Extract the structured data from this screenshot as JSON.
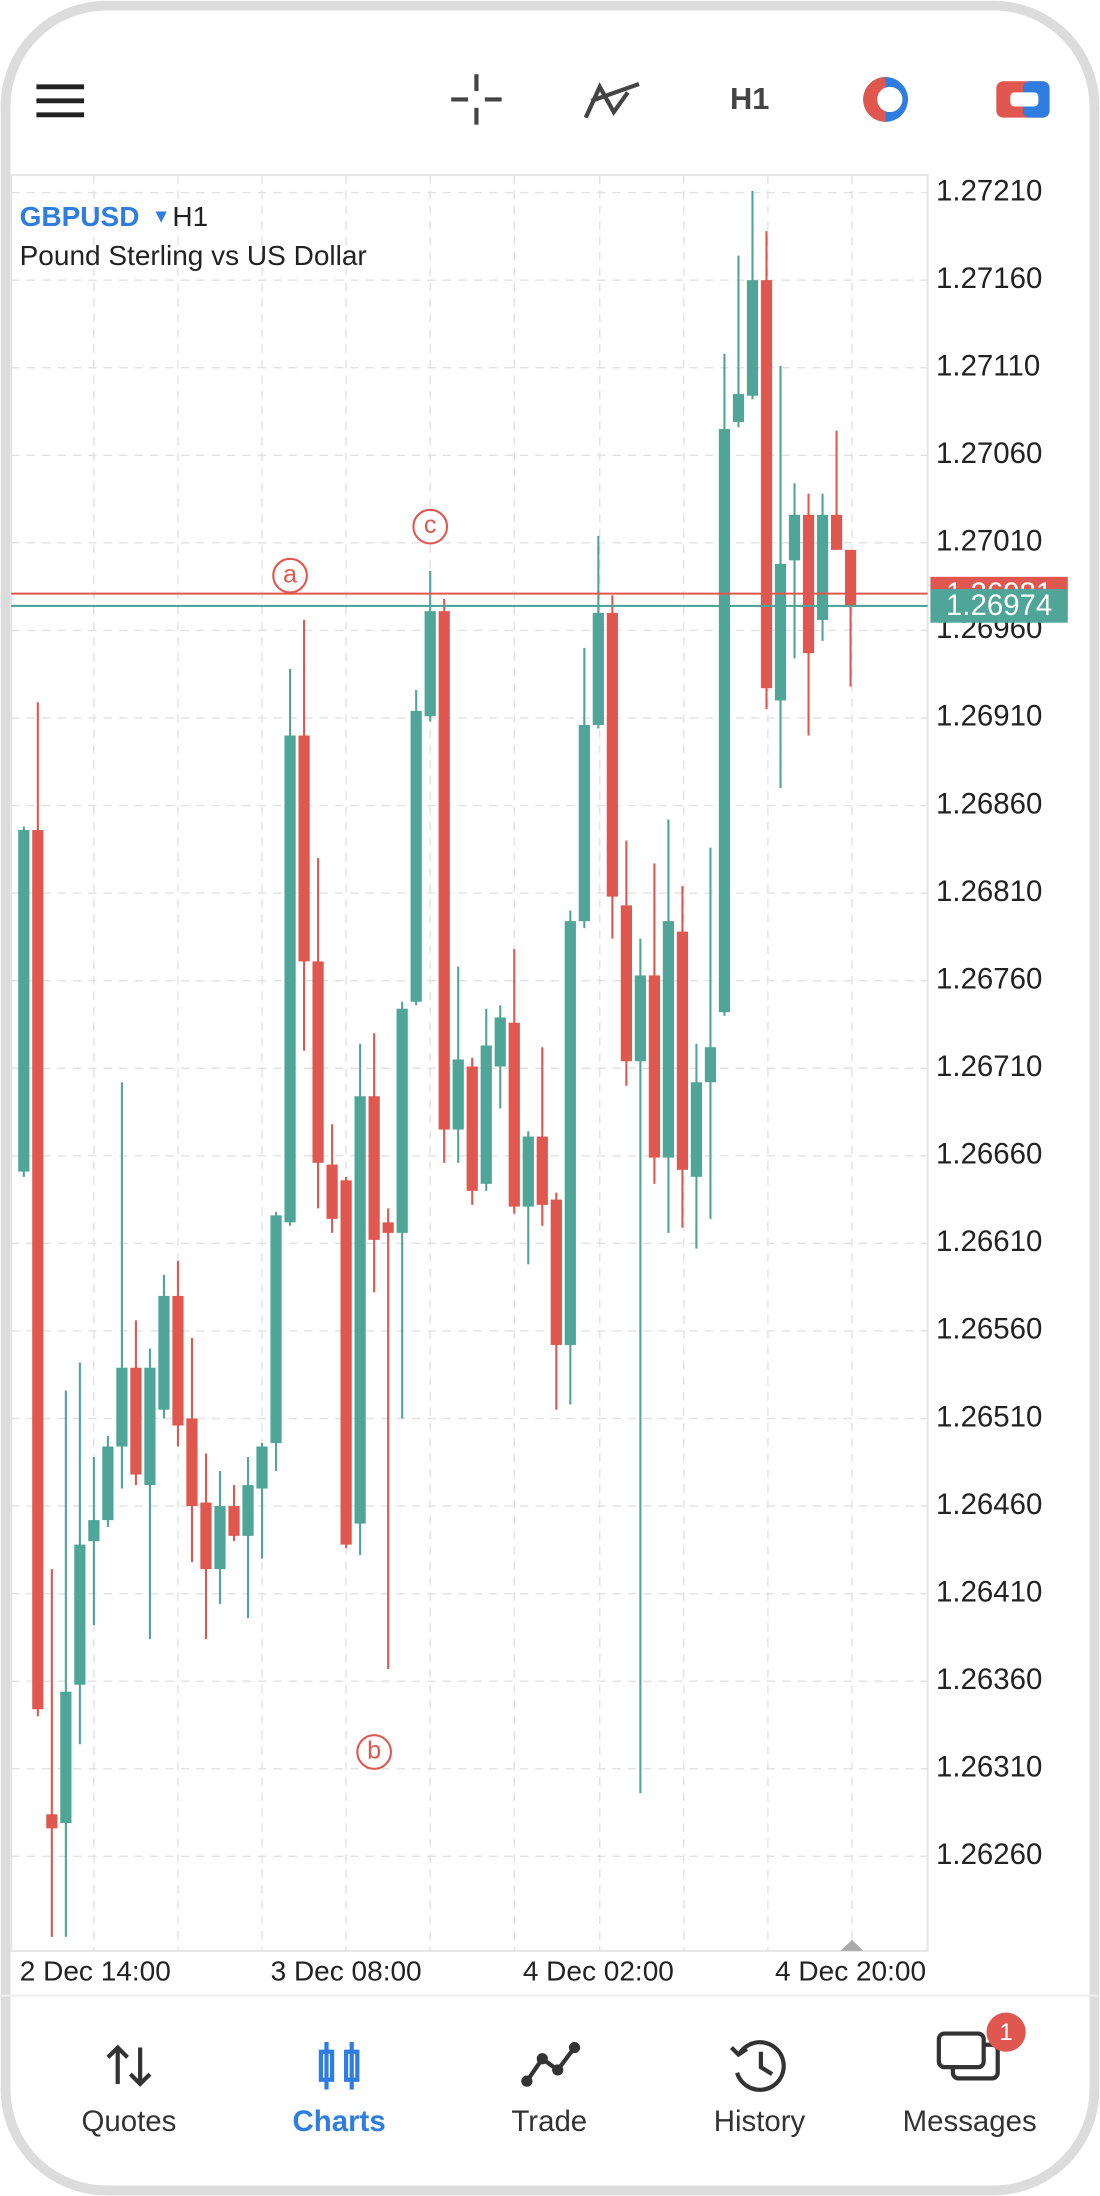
{
  "header": {
    "timeframe": "H1"
  },
  "chart_data": {
    "type": "candlestick",
    "symbol": "GBPUSD",
    "timeframe": "H1",
    "description": "Pound Sterling vs US Dollar",
    "categories": [
      null,
      null,
      null,
      null,
      null,
      "2 Dec 14:00",
      null,
      null,
      null,
      null,
      null,
      null,
      null,
      null,
      null,
      null,
      null,
      null,
      null,
      null,
      null,
      null,
      null,
      "3 Dec 08:00",
      null,
      null,
      null,
      null,
      null,
      null,
      null,
      null,
      null,
      null,
      null,
      null,
      null,
      null,
      null,
      null,
      null,
      "4 Dec 02:00",
      null,
      null,
      null,
      null,
      null,
      null,
      null,
      null,
      null,
      null,
      null,
      null,
      null,
      null,
      null,
      null,
      null,
      "4 Dec 20:00"
    ],
    "open": [
      1.26651,
      1.26846,
      1.26284,
      1.26279,
      1.26358,
      1.2644,
      1.26452,
      1.26494,
      1.26539,
      1.26472,
      1.26515,
      1.2658,
      1.2651,
      1.26462,
      1.26424,
      1.2646,
      1.26443,
      1.2647,
      1.26496,
      1.26622,
      1.269,
      1.26771,
      1.26655,
      1.26646,
      1.2645,
      1.26694,
      1.26622,
      1.26616,
      1.26748,
      1.26911,
      1.26971,
      1.26675,
      1.26711,
      1.26644,
      1.26711,
      1.26736,
      1.26631,
      1.26671,
      1.26635,
      1.26552,
      1.26794,
      1.26906,
      1.2697,
      1.26803,
      1.26714,
      1.26763,
      1.26659,
      1.26788,
      1.26648,
      1.26702,
      1.26742,
      1.27079,
      1.27094,
      1.2716,
      1.2692,
      1.27,
      1.27026,
      1.26966,
      1.27026,
      1.27006
    ],
    "high": [
      1.26848,
      1.26919,
      1.26424,
      1.26526,
      1.26542,
      1.26488,
      1.265,
      1.26702,
      1.26566,
      1.2655,
      1.26592,
      1.266,
      1.26556,
      1.2649,
      1.2648,
      1.26472,
      1.26488,
      1.26496,
      1.26628,
      1.26938,
      1.26966,
      1.2683,
      1.26678,
      1.26648,
      1.26724,
      1.2673,
      1.2663,
      1.26748,
      1.26926,
      1.26994,
      1.26978,
      1.26768,
      1.26716,
      1.26744,
      1.26746,
      1.26778,
      1.26674,
      1.26722,
      1.26639,
      1.268,
      1.2695,
      1.27014,
      1.2698,
      1.2684,
      1.26784,
      1.26827,
      1.26852,
      1.26814,
      1.26724,
      1.26836,
      1.27118,
      1.27174,
      1.27211,
      1.27188,
      1.27111,
      1.27044,
      1.27038,
      1.27038,
      1.27074,
      1.27006
    ],
    "low": [
      1.26648,
      1.2634,
      1.26214,
      1.26214,
      1.26324,
      1.26392,
      1.26448,
      1.2647,
      1.26472,
      1.26384,
      1.2651,
      1.26494,
      1.26428,
      1.26384,
      1.26404,
      1.2644,
      1.26396,
      1.2643,
      1.2648,
      1.2662,
      1.2672,
      1.2663,
      1.26616,
      1.26436,
      1.26432,
      1.26582,
      1.26367,
      1.2651,
      1.26746,
      1.26908,
      1.26656,
      1.26656,
      1.26632,
      1.2664,
      1.26687,
      1.26627,
      1.26598,
      1.2662,
      1.26515,
      1.26518,
      1.2679,
      1.26904,
      1.26784,
      1.267,
      1.26296,
      1.26644,
      1.26616,
      1.26619,
      1.26607,
      1.26624,
      1.2674,
      1.27076,
      1.27092,
      1.26915,
      1.2687,
      1.26944,
      1.269,
      1.26954,
      1.27006,
      1.26928
    ],
    "close": [
      1.26846,
      1.26344,
      1.26276,
      1.26354,
      1.26438,
      1.26452,
      1.26494,
      1.26539,
      1.26478,
      1.26539,
      1.2658,
      1.26506,
      1.2646,
      1.26424,
      1.2646,
      1.26443,
      1.26472,
      1.26494,
      1.26626,
      1.269,
      1.26771,
      1.26656,
      1.26624,
      1.26438,
      1.26694,
      1.26612,
      1.26616,
      1.26744,
      1.26914,
      1.26971,
      1.26675,
      1.26715,
      1.2664,
      1.26723,
      1.26739,
      1.26631,
      1.26671,
      1.26632,
      1.26552,
      1.26794,
      1.26906,
      1.2697,
      1.26808,
      1.26714,
      1.26763,
      1.26659,
      1.26794,
      1.26652,
      1.26702,
      1.26722,
      1.27075,
      1.27095,
      1.2716,
      1.26927,
      1.26998,
      1.27026,
      1.26947,
      1.27026,
      1.27006,
      1.26974
    ],
    "up_color": "#4fa597",
    "down_color": "#e0574f",
    "ylim": [
      1.26206,
      1.2722
    ],
    "yticks": [
      {
        "value": 1.2721,
        "label": "1.27210"
      },
      {
        "value": 1.2716,
        "label": "1.27160"
      },
      {
        "value": 1.2711,
        "label": "1.27110"
      },
      {
        "value": 1.2706,
        "label": "1.27060"
      },
      {
        "value": 1.2701,
        "label": "1.27010"
      },
      {
        "value": 1.2696,
        "label": "1.26960"
      },
      {
        "value": 1.2691,
        "label": "1.26910"
      },
      {
        "value": 1.2686,
        "label": "1.26860"
      },
      {
        "value": 1.2681,
        "label": "1.26810"
      },
      {
        "value": 1.2676,
        "label": "1.26760"
      },
      {
        "value": 1.2671,
        "label": "1.26710"
      },
      {
        "value": 1.2666,
        "label": "1.26660"
      },
      {
        "value": 1.2661,
        "label": "1.26610"
      },
      {
        "value": 1.2656,
        "label": "1.26560"
      },
      {
        "value": 1.2651,
        "label": "1.26510"
      },
      {
        "value": 1.2646,
        "label": "1.26460"
      },
      {
        "value": 1.2641,
        "label": "1.26410"
      },
      {
        "value": 1.2636,
        "label": "1.26360"
      },
      {
        "value": 1.2631,
        "label": "1.26310"
      },
      {
        "value": 1.2626,
        "label": "1.26260"
      }
    ],
    "grid": true,
    "ask": 1.26981,
    "bid": 1.26974,
    "annotations": [
      "a",
      "b",
      "c"
    ]
  },
  "nav": {
    "items": [
      "Quotes",
      "Charts",
      "Trade",
      "History",
      "Messages"
    ],
    "badge": "1"
  }
}
